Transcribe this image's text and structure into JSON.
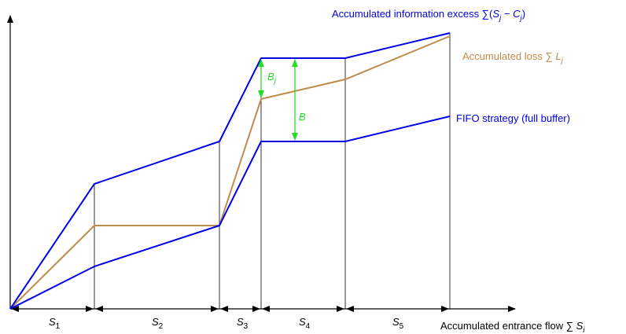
{
  "labels": {
    "excess": {
      "text": "Accumulated information excess ∑(",
      "var1": "S",
      "sub1": "j",
      "minus": " − ",
      "var2": "C",
      "sub2": "j",
      "end": ")"
    },
    "loss": {
      "text": "Accumulated loss ∑ ",
      "var": "L",
      "sub": "j"
    },
    "fifo": {
      "text": "FIFO strategy (full buffer)"
    },
    "bj": {
      "var": "B",
      "sub": "j"
    },
    "b": {
      "var": "B"
    },
    "x_axis": {
      "text": "Accumulated entrance flow ∑ ",
      "var": "S",
      "sub": "i"
    },
    "segments": [
      {
        "var": "S",
        "sub": "1"
      },
      {
        "var": "S",
        "sub": "2"
      },
      {
        "var": "S",
        "sub": "3"
      },
      {
        "var": "S",
        "sub": "4"
      },
      {
        "var": "S",
        "sub": "5"
      }
    ]
  }
}
